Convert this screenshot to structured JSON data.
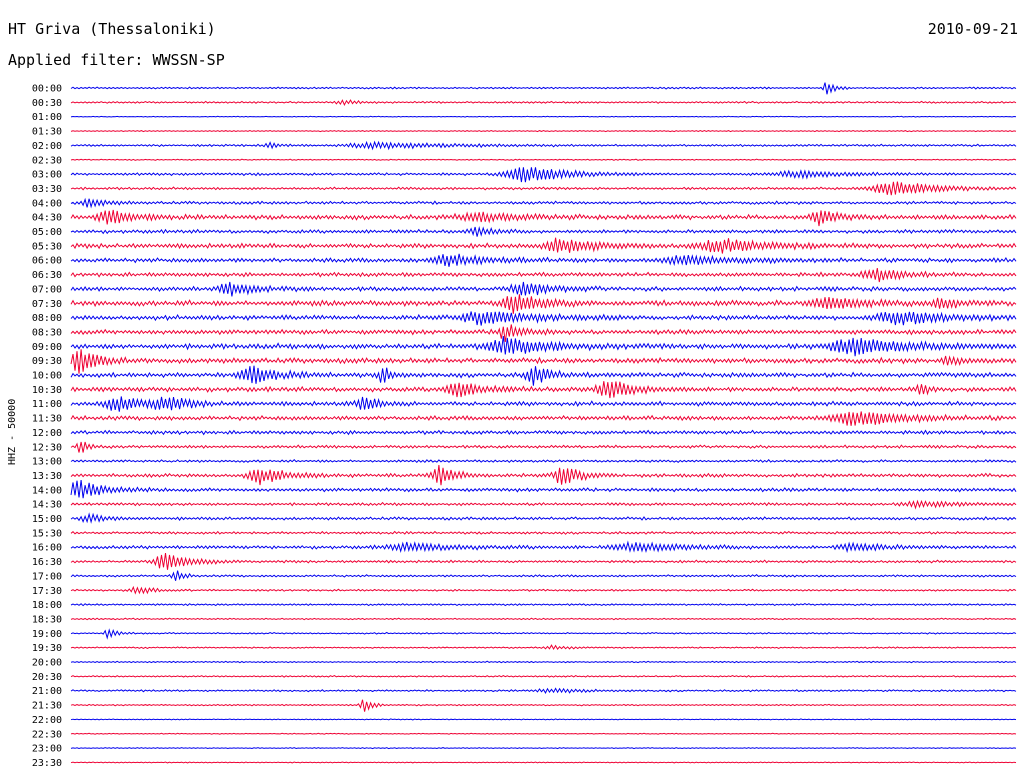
{
  "header": {
    "station": "HT Griva (Thessaloniki)",
    "filter": "Applied filter: WWSSN-SP",
    "date": "2010-09-21"
  },
  "chart_data": {
    "type": "line",
    "title": "HT Griva (Thessaloniki)",
    "subtitle": "Applied filter: WWSSN-SP",
    "ylabel": "HHZ - 50000",
    "xlabel": "",
    "colors": [
      "#0000ee",
      "#ee0033"
    ],
    "grid": false,
    "rows": [
      "00:00",
      "00:30",
      "01:00",
      "01:30",
      "02:00",
      "02:30",
      "03:00",
      "03:30",
      "04:00",
      "04:30",
      "05:00",
      "05:30",
      "06:00",
      "06:30",
      "07:00",
      "07:30",
      "08:00",
      "08:30",
      "09:00",
      "09:30",
      "10:00",
      "10:30",
      "11:00",
      "11:30",
      "12:00",
      "12:30",
      "13:00",
      "13:30",
      "14:00",
      "14:30",
      "15:00",
      "15:30",
      "16:00",
      "16:30",
      "17:00",
      "17:30",
      "18:00",
      "18:30",
      "19:00",
      "19:30",
      "20:00",
      "20:30",
      "21:00",
      "21:30",
      "22:00",
      "22:30",
      "23:00",
      "23:30"
    ]
  }
}
